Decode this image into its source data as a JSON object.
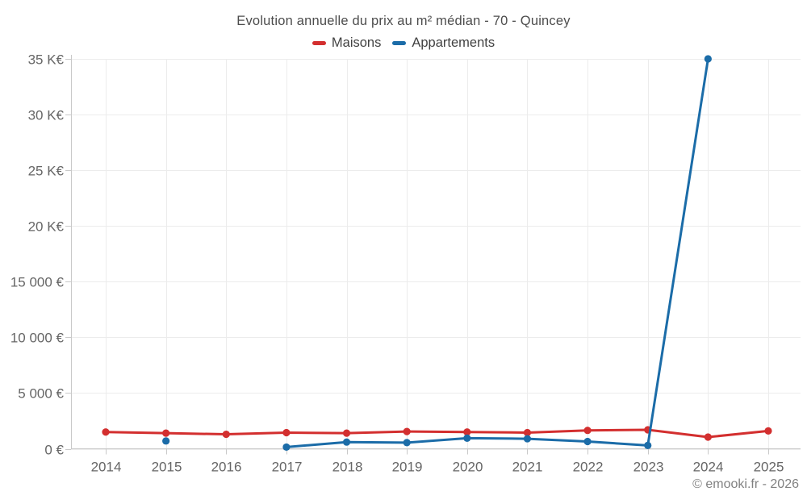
{
  "header": {
    "title": "Evolution annuelle du prix au m² médian - 70 - Quincey"
  },
  "chart_data": {
    "type": "line",
    "title": "Evolution annuelle du prix au m² médian - 70 - Quincey",
    "categories": [
      "2014",
      "2015",
      "2016",
      "2017",
      "2018",
      "2019",
      "2020",
      "2021",
      "2022",
      "2023",
      "2024",
      "2025"
    ],
    "series": [
      {
        "name": "Maisons",
        "color": "#d32f2f",
        "values": [
          1500,
          1400,
          1300,
          1450,
          1400,
          1550,
          1500,
          1450,
          1650,
          1700,
          1050,
          1600
        ]
      },
      {
        "name": "Appartements",
        "color": "#1b6ca8",
        "values": [
          null,
          700,
          null,
          150,
          600,
          550,
          950,
          900,
          650,
          300,
          35000,
          null
        ]
      }
    ],
    "xlabel": "",
    "ylabel": "",
    "ylim": [
      0,
      35000
    ],
    "y_ticks": [
      {
        "value": 0,
        "label": "0 €"
      },
      {
        "value": 5000,
        "label": "5 000 €"
      },
      {
        "value": 10000,
        "label": "10 000 €"
      },
      {
        "value": 15000,
        "label": "15 000 €"
      },
      {
        "value": 20000,
        "label": "20 K€"
      },
      {
        "value": 25000,
        "label": "25 K€"
      },
      {
        "value": 30000,
        "label": "30 K€"
      },
      {
        "value": 35000,
        "label": "35 K€"
      }
    ],
    "grid": true,
    "legend_position": "top"
  },
  "footer": {
    "copyright": "© emooki.fr - 2026"
  },
  "colors": {
    "grid": "#ececec",
    "axis": "#c9c9c9",
    "tick_text": "#666666",
    "title_text": "#4d4d4d",
    "footer_text": "#818181"
  }
}
